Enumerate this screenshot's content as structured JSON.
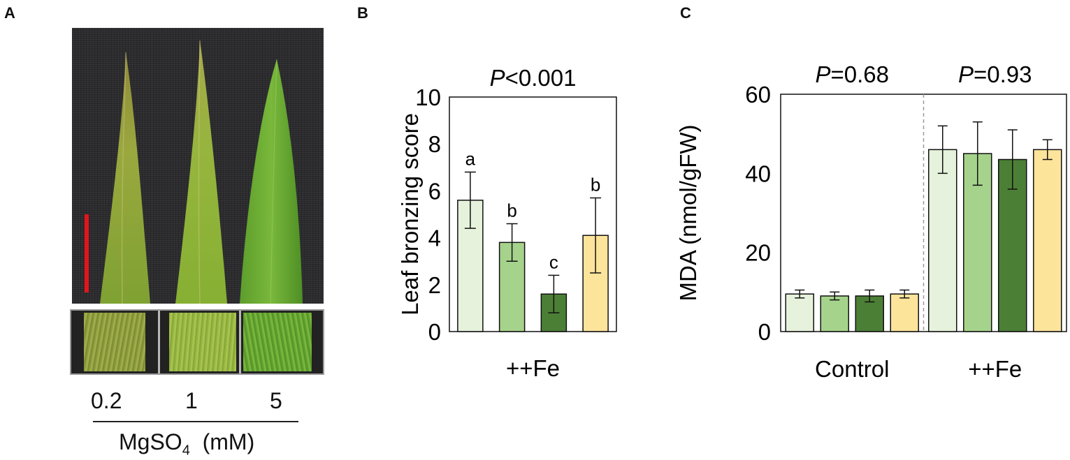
{
  "panel_letters": [
    "A",
    "B",
    "C"
  ],
  "panel_a": {
    "concentrations": [
      "0.2",
      "1",
      "5"
    ],
    "axis_title_main": "MgSO",
    "axis_title_sub": "4",
    "axis_title_unit": "(mM)"
  },
  "chart_data": [
    {
      "type": "bar",
      "panel": "B",
      "ylabel": "Leaf bronzing score",
      "ylim": [
        0,
        10
      ],
      "yticks": [
        0,
        2,
        4,
        6,
        8,
        10
      ],
      "group_labels": [
        "++Fe"
      ],
      "p_value_prefix": "P",
      "p_value_text": "<0.001",
      "bars": [
        {
          "value": 5.6,
          "error": 1.2,
          "letter": "a",
          "color": "#e6f2dc"
        },
        {
          "value": 3.8,
          "error": 0.8,
          "letter": "b",
          "color": "#a6d38c"
        },
        {
          "value": 1.6,
          "error": 0.8,
          "letter": "c",
          "color": "#4c7f36"
        },
        {
          "value": 4.1,
          "error": 1.6,
          "letter": "b",
          "color": "#fde49b"
        }
      ]
    },
    {
      "type": "bar",
      "panel": "C",
      "ylabel": "MDA (nmol/gFW)",
      "ylim": [
        0,
        60
      ],
      "yticks": [
        0,
        20,
        40,
        60
      ],
      "group_labels": [
        "Control",
        "++Fe"
      ],
      "p_value_prefix": "P",
      "p_values": [
        "=0.68",
        "=0.93"
      ],
      "colors": [
        "#e6f2dc",
        "#a6d38c",
        "#4c7f36",
        "#fde49b"
      ],
      "series_values": {
        "Control": [
          9.5,
          9.0,
          9.0,
          9.5
        ],
        "++Fe": [
          46.0,
          45.0,
          43.5,
          46.0
        ]
      },
      "series_errors": {
        "Control": [
          1.0,
          1.0,
          1.5,
          1.0
        ],
        "++Fe": [
          6.0,
          8.0,
          7.5,
          2.5
        ]
      }
    }
  ]
}
